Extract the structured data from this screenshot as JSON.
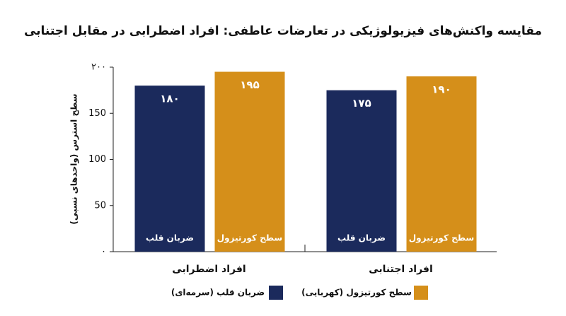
{
  "chart_data": {
    "type": "bar",
    "title": "مقایسه واکنش‌های فیزیولوژیکی در تعارضات عاطفی: افراد اضطرابی در مقابل اجتنابی",
    "y_label": "سطح استرس (واحدهای نسبی)",
    "categories": [
      "افراد اضطرابی",
      "افراد اجتنابی"
    ],
    "series": [
      {
        "name": "ضربان قلب (سرمه‌ای)",
        "bar_label": "ضربان قلب",
        "color": "#1b2a5c",
        "values": [
          180,
          175
        ],
        "value_labels": [
          "۱۸۰",
          "۱۷۵"
        ]
      },
      {
        "name": "سطح کورتیزول (کهربایی)",
        "bar_label": "سطح کورتیزول",
        "color": "#d58f1a",
        "values": [
          195,
          190
        ],
        "value_labels": [
          "۱۹۵",
          "۱۹۰"
        ]
      }
    ],
    "ylim": [
      0,
      200
    ],
    "yticks": [
      {
        "value": 0,
        "label": "۰"
      },
      50,
      100,
      150,
      {
        "value": 200,
        "label": "۲۰۰"
      }
    ]
  }
}
